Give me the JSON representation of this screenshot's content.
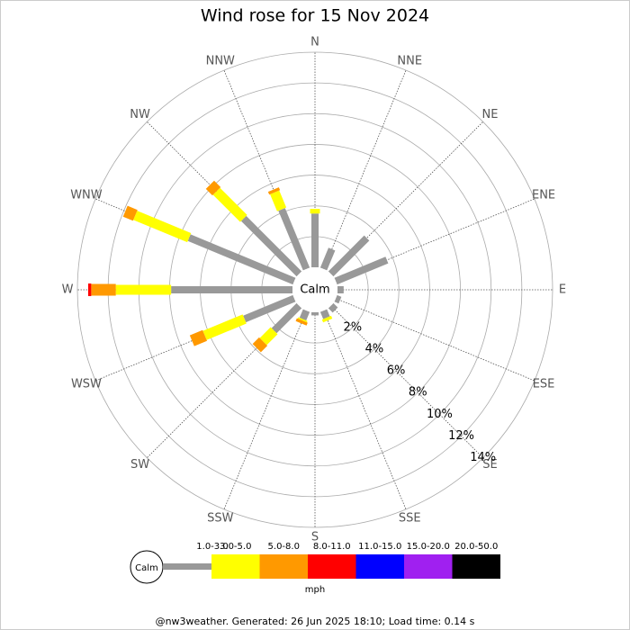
{
  "chart_data": {
    "type": "windrose",
    "title": "Wind rose for 15 Nov 2024",
    "categories": [
      "N",
      "NNE",
      "NE",
      "ENE",
      "E",
      "ESE",
      "SE",
      "SSE",
      "S",
      "SSW",
      "SW",
      "WSW",
      "W",
      "WNW",
      "NW",
      "NNW"
    ],
    "calm_label": "Calm",
    "unit_label": "mph",
    "footer": "@nw3weather. Generated: 26 Jun 2025 18:10; Load time: 0.14 s",
    "rlim": [
      0,
      14
    ],
    "rticks": [
      {
        "value": 2,
        "label": "2%"
      },
      {
        "value": 4,
        "label": "4%"
      },
      {
        "value": 6,
        "label": "6%"
      },
      {
        "value": 8,
        "label": "8%"
      },
      {
        "value": 10,
        "label": "10%"
      },
      {
        "value": 12,
        "label": "12%"
      },
      {
        "value": 14,
        "label": "14%"
      }
    ],
    "series": [
      {
        "name": "1.0-3.0",
        "color": "#999999",
        "values": [
          3.5,
          1.4,
          3.3,
          3.6,
          0.4,
          0.3,
          0.4,
          0.5,
          0.2,
          0.6,
          2.3,
          3.5,
          7.9,
          7.4,
          5.1,
          4.2
        ]
      },
      {
        "name": "3.0-5.0",
        "color": "#ffff00",
        "values": [
          0.3,
          0,
          0,
          0,
          0,
          0,
          0,
          0.2,
          0,
          0.1,
          1.0,
          2.8,
          3.6,
          3.8,
          2.5,
          1.2
        ]
      },
      {
        "name": "5.0-8.0",
        "color": "#ff9900",
        "values": [
          0,
          0,
          0,
          0,
          0,
          0,
          0,
          0,
          0,
          0.2,
          0.6,
          0.9,
          1.6,
          0.7,
          0.6,
          0.2
        ]
      },
      {
        "name": "8.0-11.0",
        "color": "#ff0000",
        "values": [
          0,
          0,
          0,
          0,
          0,
          0,
          0,
          0,
          0,
          0,
          0,
          0,
          0.2,
          0,
          0,
          0
        ]
      },
      {
        "name": "11.0-15.0",
        "color": "#0000ff",
        "values": [
          0,
          0,
          0,
          0,
          0,
          0,
          0,
          0,
          0,
          0,
          0,
          0,
          0,
          0,
          0,
          0
        ]
      },
      {
        "name": "15.0-20.0",
        "color": "#a020f0",
        "values": [
          0,
          0,
          0,
          0,
          0,
          0,
          0,
          0,
          0,
          0,
          0,
          0,
          0,
          0,
          0,
          0
        ]
      },
      {
        "name": "20.0-50.0",
        "color": "#000000",
        "values": [
          0,
          0,
          0,
          0,
          0,
          0,
          0,
          0,
          0,
          0,
          0,
          0,
          0,
          0,
          0,
          0
        ]
      }
    ]
  }
}
